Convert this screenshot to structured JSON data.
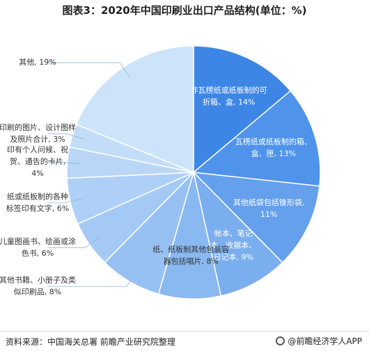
{
  "title": "图表3：2020年中国印刷业出口产品结构(单位：%)",
  "chart_data": {
    "type": "pie",
    "title": "图表3：2020年中国印刷业出口产品结构(单位：%)",
    "unit": "%",
    "slices": [
      {
        "label_lines": [
          "非瓦楞纸或纸板制的可",
          "折箱、盒, 14%"
        ],
        "value": 14,
        "color": "#3d86e6",
        "label_color": "#ffffff"
      },
      {
        "label_lines": [
          "瓦楞纸或纸板制的箱、",
          "盒、匣, 13%"
        ],
        "value": 13,
        "color": "#4f93ea",
        "label_color": "#ffffff"
      },
      {
        "label_lines": [
          "其他纸袋包括锥形袋,",
          "11%"
        ],
        "value": 11,
        "color": "#64a0ec",
        "label_color": "#ffffff"
      },
      {
        "label_lines": [
          "帐本、笔记",
          "本、收据本、",
          "日记本, 9%"
        ],
        "value": 9,
        "color": "#7aaeee",
        "label_color": "#ffffff"
      },
      {
        "label_lines": [
          "纸、纸板制其他包装容",
          "器包括唱片, 8%"
        ],
        "value": 8,
        "color": "#8ab8f1",
        "label_color": "#333333"
      },
      {
        "label_lines": [
          "其他书籍、小册子及类",
          "似印刷品, 8%"
        ],
        "value": 8,
        "color": "#98c1f3",
        "label_color": "#333333"
      },
      {
        "label_lines": [
          "儿童图画书、绘画或涂",
          "色书, 6%"
        ],
        "value": 6,
        "color": "#a4c9f5",
        "label_color": "#333333"
      },
      {
        "label_lines": [
          "纸或纸板制的各种",
          "标签印有文字, 6%"
        ],
        "value": 6,
        "color": "#afd0f6",
        "label_color": "#333333"
      },
      {
        "label_lines": [
          "印有个人问候、祝",
          "贺、通告的卡片,",
          "4%"
        ],
        "value": 4,
        "color": "#b9d6f7",
        "label_color": "#333333"
      },
      {
        "label_lines": [
          "印刷的图片、设计图样",
          "及照片合计, 3%"
        ],
        "value": 3,
        "color": "#c3ddf8",
        "label_color": "#333333"
      },
      {
        "label_lines": [
          "其他, 19%"
        ],
        "value": 19,
        "color": "#cde3f9",
        "label_color": "#333333"
      }
    ]
  },
  "footer": {
    "source": "资料来源：中国海关总署 前瞻产业研究院整理",
    "brand": "@前瞻经济学人APP"
  }
}
